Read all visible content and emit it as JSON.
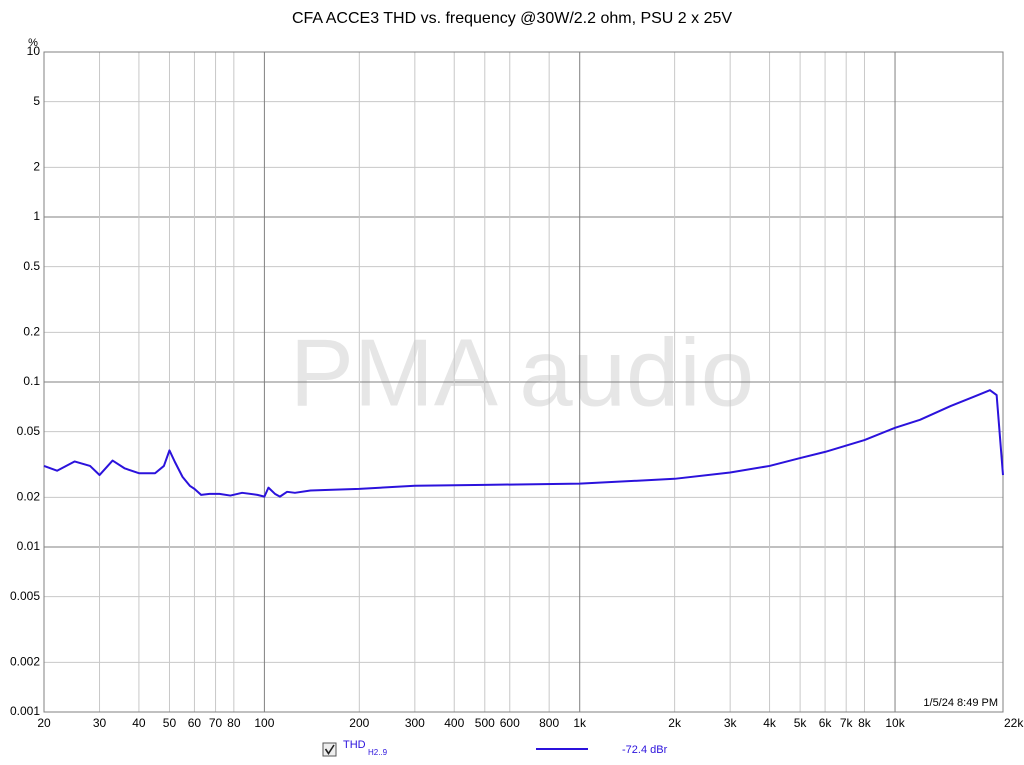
{
  "chart_data": {
    "type": "line",
    "title": "CFA ACCE3 THD vs. frequency @30W/2.2 ohm, PSU 2 x 25V",
    "y_label": "%",
    "annotation": "1/5/24 8:49 PM",
    "watermark": "PMA audio",
    "xscale": "log",
    "yscale": "log",
    "grid": true,
    "xlim": [
      20,
      22000
    ],
    "ylim": [
      0.001,
      10
    ],
    "xticks": [
      20,
      30,
      40,
      50,
      60,
      70,
      80,
      100,
      200,
      300,
      400,
      500,
      600,
      800,
      {
        "value": 1000,
        "label": "1k"
      },
      {
        "value": 2000,
        "label": "2k"
      },
      {
        "value": 3000,
        "label": "3k"
      },
      {
        "value": 4000,
        "label": "4k"
      },
      {
        "value": 5000,
        "label": "5k"
      },
      {
        "value": 6000,
        "label": "6k"
      },
      {
        "value": 7000,
        "label": "7k"
      },
      {
        "value": 8000,
        "label": "8k"
      },
      {
        "value": 10000,
        "label": "10k"
      },
      {
        "value": 22000,
        "label": "22kHz"
      }
    ],
    "yticks": [
      0.001,
      0.002,
      0.005,
      0.01,
      0.02,
      0.05,
      0.1,
      0.2,
      0.5,
      1,
      2,
      5,
      10
    ],
    "x": [
      20,
      22,
      25,
      28,
      30,
      33,
      36,
      40,
      45,
      48,
      50,
      52,
      55,
      58,
      60,
      63,
      67,
      72,
      78,
      85,
      95,
      100,
      103,
      108,
      112,
      118,
      125,
      140,
      160,
      200,
      300,
      500,
      1000,
      2000,
      3000,
      4000,
      5000,
      6000,
      8000,
      10000,
      12000,
      15000,
      18000,
      20000,
      21000,
      22000
    ],
    "series": [
      {
        "name": "THD",
        "name_subscript": "H2..9",
        "color": "#2b12dc",
        "legend_value": "-72.4 dBr",
        "values": [
          0.031,
          0.029,
          0.033,
          0.031,
          0.0273,
          0.0334,
          0.03,
          0.028,
          0.028,
          0.031,
          0.0385,
          0.0328,
          0.0266,
          0.0235,
          0.0225,
          0.0207,
          0.021,
          0.021,
          0.0205,
          0.0213,
          0.0207,
          0.0202,
          0.0229,
          0.021,
          0.0202,
          0.0216,
          0.0213,
          0.022,
          0.0222,
          0.0225,
          0.0235,
          0.0238,
          0.0242,
          0.0259,
          0.0283,
          0.031,
          0.0346,
          0.0377,
          0.0445,
          0.0528,
          0.059,
          0.0715,
          0.0822,
          0.0892,
          0.0834,
          0.0273
        ]
      }
    ]
  }
}
